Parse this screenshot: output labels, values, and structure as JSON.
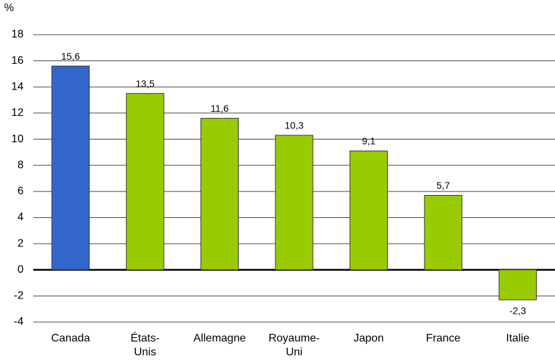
{
  "chart_data": {
    "type": "bar",
    "y_label": "%",
    "categories": [
      [
        "Canada"
      ],
      [
        "États-",
        "Unis"
      ],
      [
        "Allemagne"
      ],
      [
        "Royaume-",
        "Uni"
      ],
      [
        "Japon"
      ],
      [
        "France"
      ],
      [
        "Italie"
      ]
    ],
    "values": [
      15.6,
      13.5,
      11.6,
      10.3,
      9.1,
      5.7,
      -2.3
    ],
    "value_labels": [
      "15,6",
      "13,5",
      "11,6",
      "10,3",
      "9,1",
      "5,7",
      "-2,3"
    ],
    "colors": [
      "#3366cc",
      "#99cc00",
      "#99cc00",
      "#99cc00",
      "#99cc00",
      "#99cc00",
      "#99cc00"
    ],
    "ylim": [
      -4,
      18
    ],
    "yticks": [
      -4,
      -2,
      0,
      2,
      4,
      6,
      8,
      10,
      12,
      14,
      16,
      18
    ],
    "grid": true
  }
}
